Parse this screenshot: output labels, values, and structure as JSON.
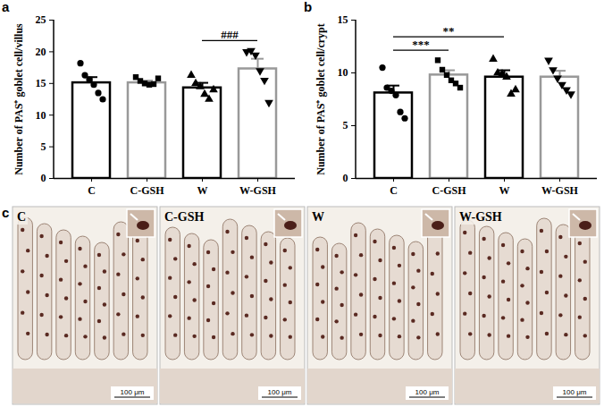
{
  "chart_data": [
    {
      "panel": "a",
      "type": "bar",
      "y_label": "Number of PAS⁺ goblet cell/villus",
      "categories": [
        "C",
        "C-GSH",
        "W",
        "W-GSH"
      ],
      "values": [
        15.1,
        15.1,
        14.3,
        17.3
      ],
      "errors": [
        0.9,
        0.35,
        0.8,
        1.6
      ],
      "points": [
        [
          18.2,
          16.3,
          15.6,
          14.8,
          13.5,
          12.5
        ],
        [
          16.0,
          15.4,
          15.0,
          14.8,
          14.9,
          15.8
        ],
        [
          16.3,
          15.0,
          14.5,
          13.3,
          12.5,
          14.0
        ],
        [
          20.0,
          20.2,
          19.5,
          17.0,
          15.5,
          12.0
        ]
      ],
      "colors": [
        "#000000",
        "#999999",
        "#000000",
        "#999999"
      ],
      "markers": [
        "circle",
        "square",
        "triangle",
        "triangle-down"
      ],
      "ylim": [
        0,
        25
      ],
      "yticks": [
        0,
        5,
        10,
        15,
        20,
        25
      ],
      "annotations": [
        {
          "text": "###",
          "from": "W",
          "to": "W-GSH"
        }
      ]
    },
    {
      "panel": "b",
      "type": "bar",
      "y_label": "Number of PAS⁺ goblet cell/crypt",
      "categories": [
        "C",
        "C-GSH",
        "W",
        "W-GSH"
      ],
      "values": [
        8.1,
        9.8,
        9.6,
        9.6
      ],
      "errors": [
        0.7,
        0.45,
        0.65,
        0.6
      ],
      "points": [
        [
          10.5,
          8.6,
          8.3,
          7.9,
          6.3,
          5.7
        ],
        [
          11.2,
          10.3,
          9.8,
          9.3,
          9.0,
          8.6
        ],
        [
          11.3,
          10.0,
          9.9,
          9.6,
          8.0,
          8.4
        ],
        [
          11.2,
          10.3,
          9.5,
          8.9,
          8.4,
          8.0
        ]
      ],
      "colors": [
        "#000000",
        "#999999",
        "#000000",
        "#999999"
      ],
      "markers": [
        "circle",
        "square",
        "triangle",
        "triangle-down"
      ],
      "ylim": [
        0,
        15
      ],
      "yticks": [
        0,
        5,
        10,
        15
      ],
      "annotations": [
        {
          "text": "***",
          "from": "C",
          "to": "C-GSH"
        },
        {
          "text": "**",
          "from": "C",
          "to": "W"
        }
      ]
    }
  ],
  "images": {
    "panel": "c",
    "items": [
      {
        "label": "C",
        "scale_bar": "100 μm"
      },
      {
        "label": "C-GSH",
        "scale_bar": "100 μm"
      },
      {
        "label": "W",
        "scale_bar": "100 μm"
      },
      {
        "label": "W-GSH",
        "scale_bar": "100 μm"
      }
    ]
  }
}
